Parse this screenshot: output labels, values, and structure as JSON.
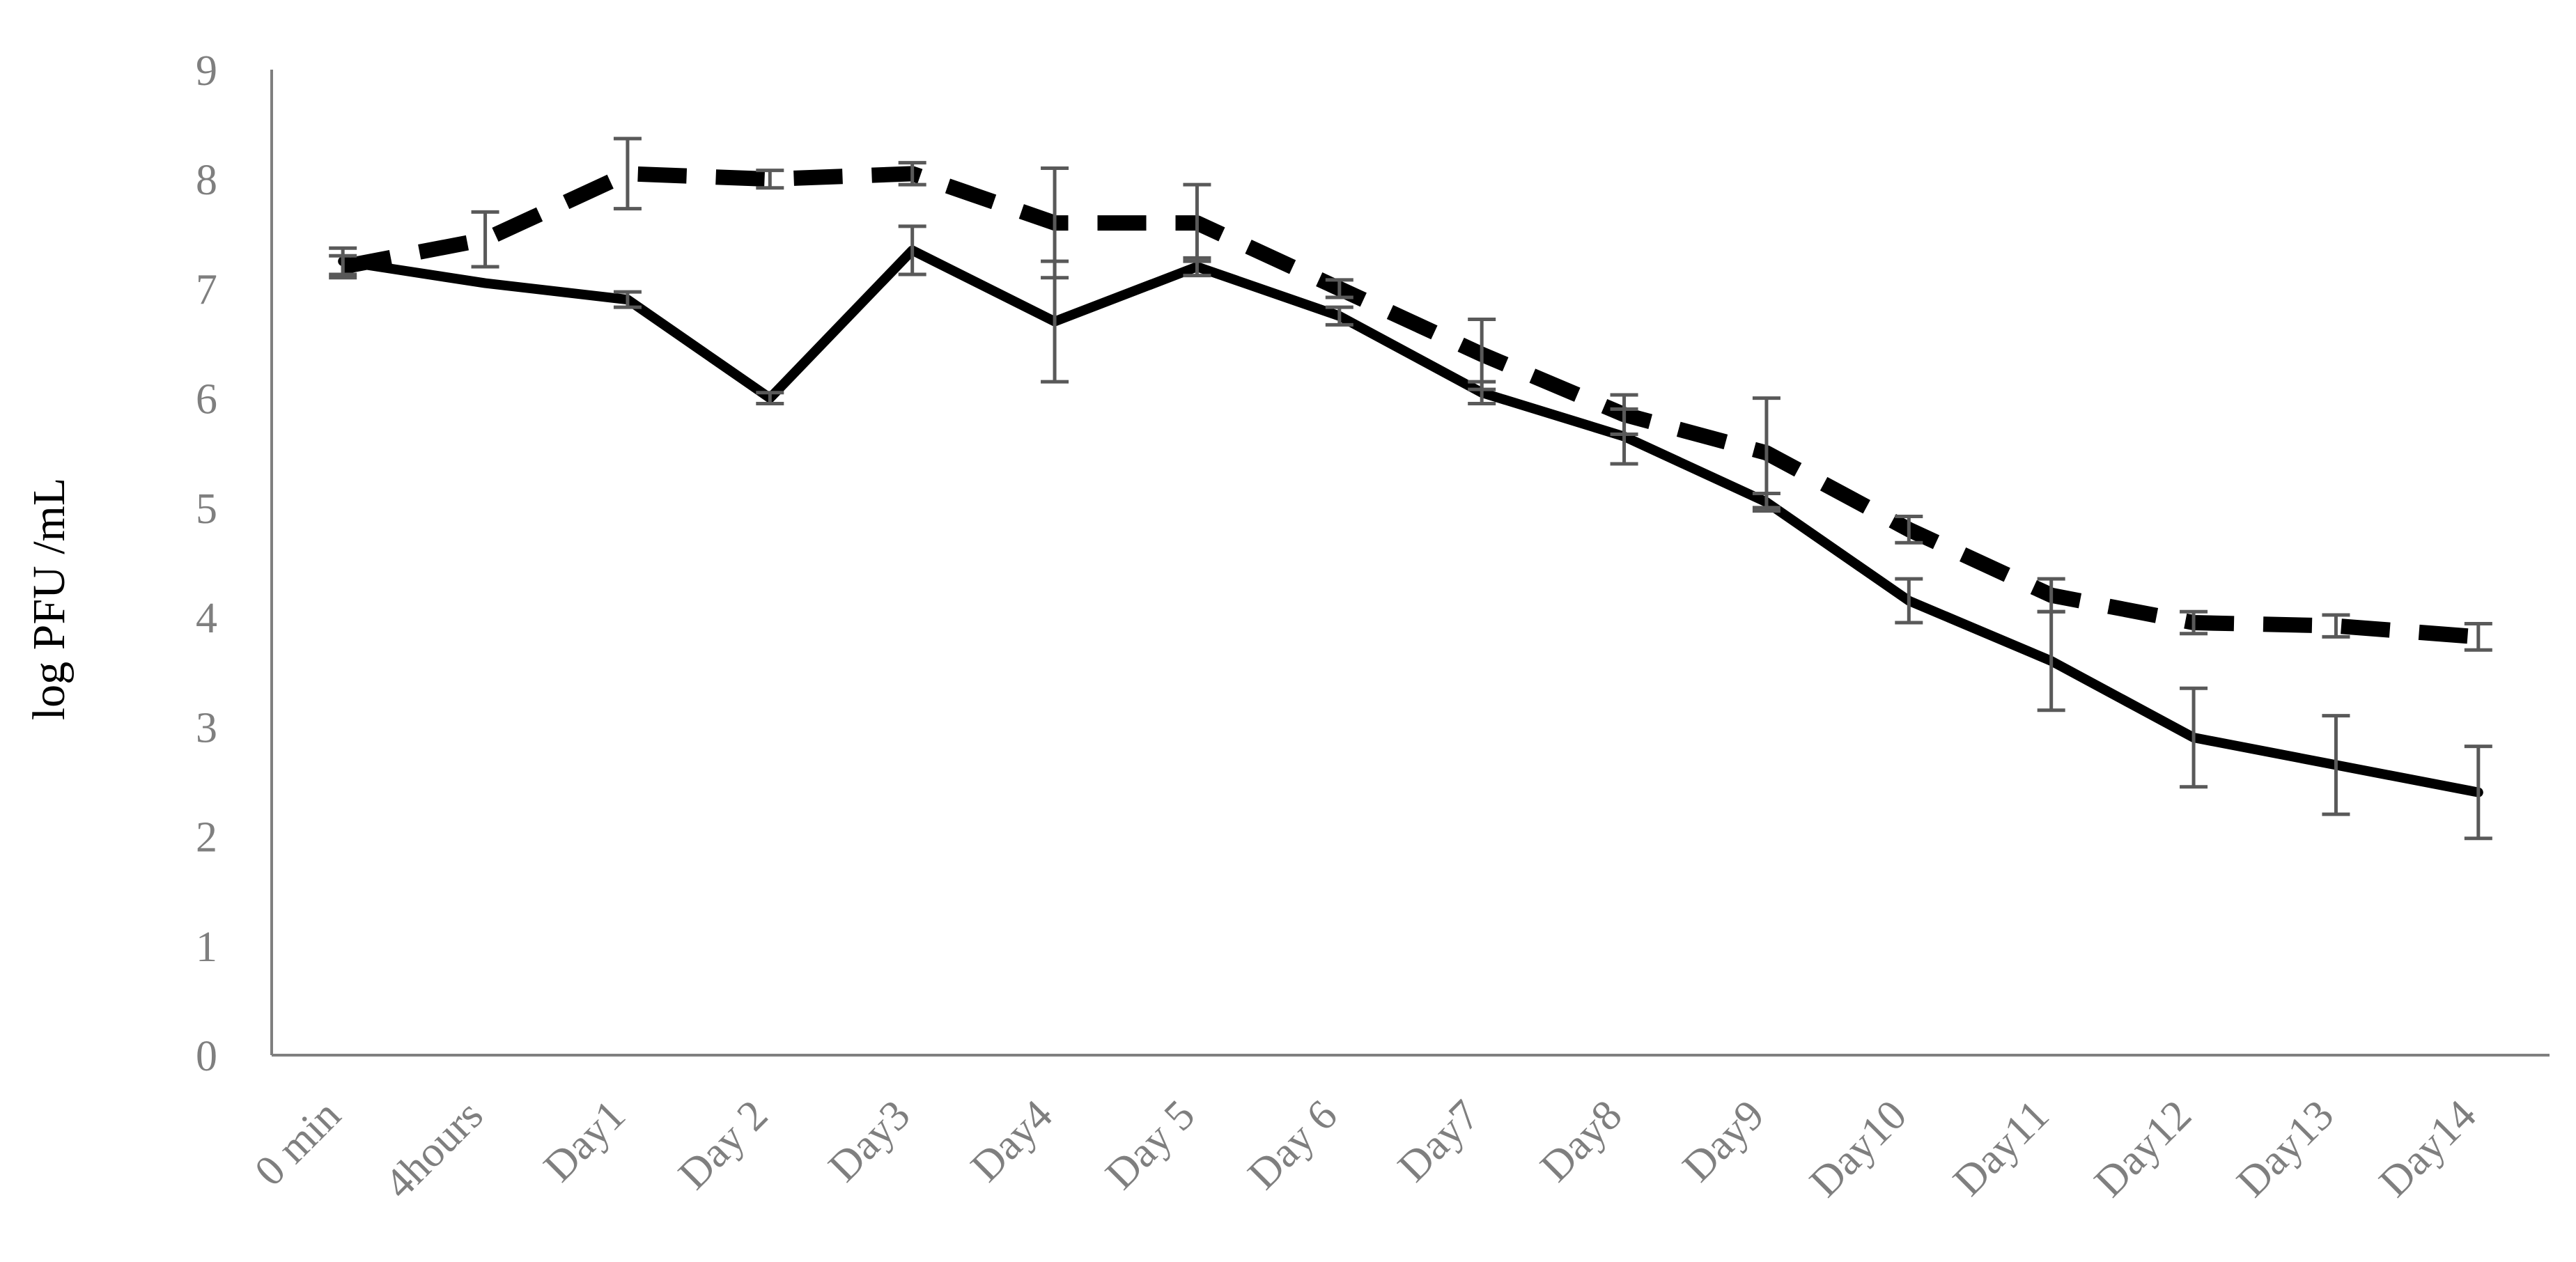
{
  "chart_data": {
    "type": "line",
    "title": "",
    "xlabel": "",
    "ylabel": "log PFU /mL",
    "ylim": [
      0,
      9
    ],
    "yticks": [
      "0",
      "1",
      "2",
      "3",
      "4",
      "5",
      "6",
      "7",
      "8",
      "9"
    ],
    "grid": false,
    "legend": "none",
    "categories": [
      "0 min",
      "4hours",
      "Day1",
      "Day 2",
      "Day3",
      "Day4",
      "Day 5",
      "Day 6",
      "Day7",
      "Day8",
      "Day9",
      "Day10",
      "Day11",
      "Day12",
      "Day13",
      "Day14"
    ],
    "series": [
      {
        "style": "solid",
        "color": "#000000",
        "values": [
          7.25,
          7.05,
          6.9,
          6.0,
          7.35,
          6.7,
          7.2,
          6.75,
          6.05,
          5.65,
          5.05,
          4.15,
          3.6,
          2.9,
          2.65,
          2.4
        ],
        "error": [
          0.12,
          null,
          0.07,
          0.05,
          0.22,
          0.55,
          0.08,
          0.08,
          0.1,
          0.25,
          0.08,
          0.2,
          0.45,
          0.45,
          0.45,
          0.42
        ]
      },
      {
        "style": "dashed",
        "color": "#000000",
        "values": [
          7.2,
          7.45,
          8.05,
          8.0,
          8.05,
          7.6,
          7.6,
          7.0,
          6.4,
          5.85,
          5.5,
          4.8,
          4.2,
          3.95,
          3.92,
          3.82
        ],
        "error": [
          0.1,
          0.25,
          0.32,
          0.08,
          0.1,
          0.5,
          0.35,
          0.08,
          0.32,
          0.18,
          0.5,
          0.12,
          0.15,
          0.1,
          0.1,
          0.12
        ]
      }
    ],
    "colors": {
      "axis": "#7f7f7f",
      "tick_text": "#7f7f7f",
      "error_bar": "#595959"
    }
  }
}
